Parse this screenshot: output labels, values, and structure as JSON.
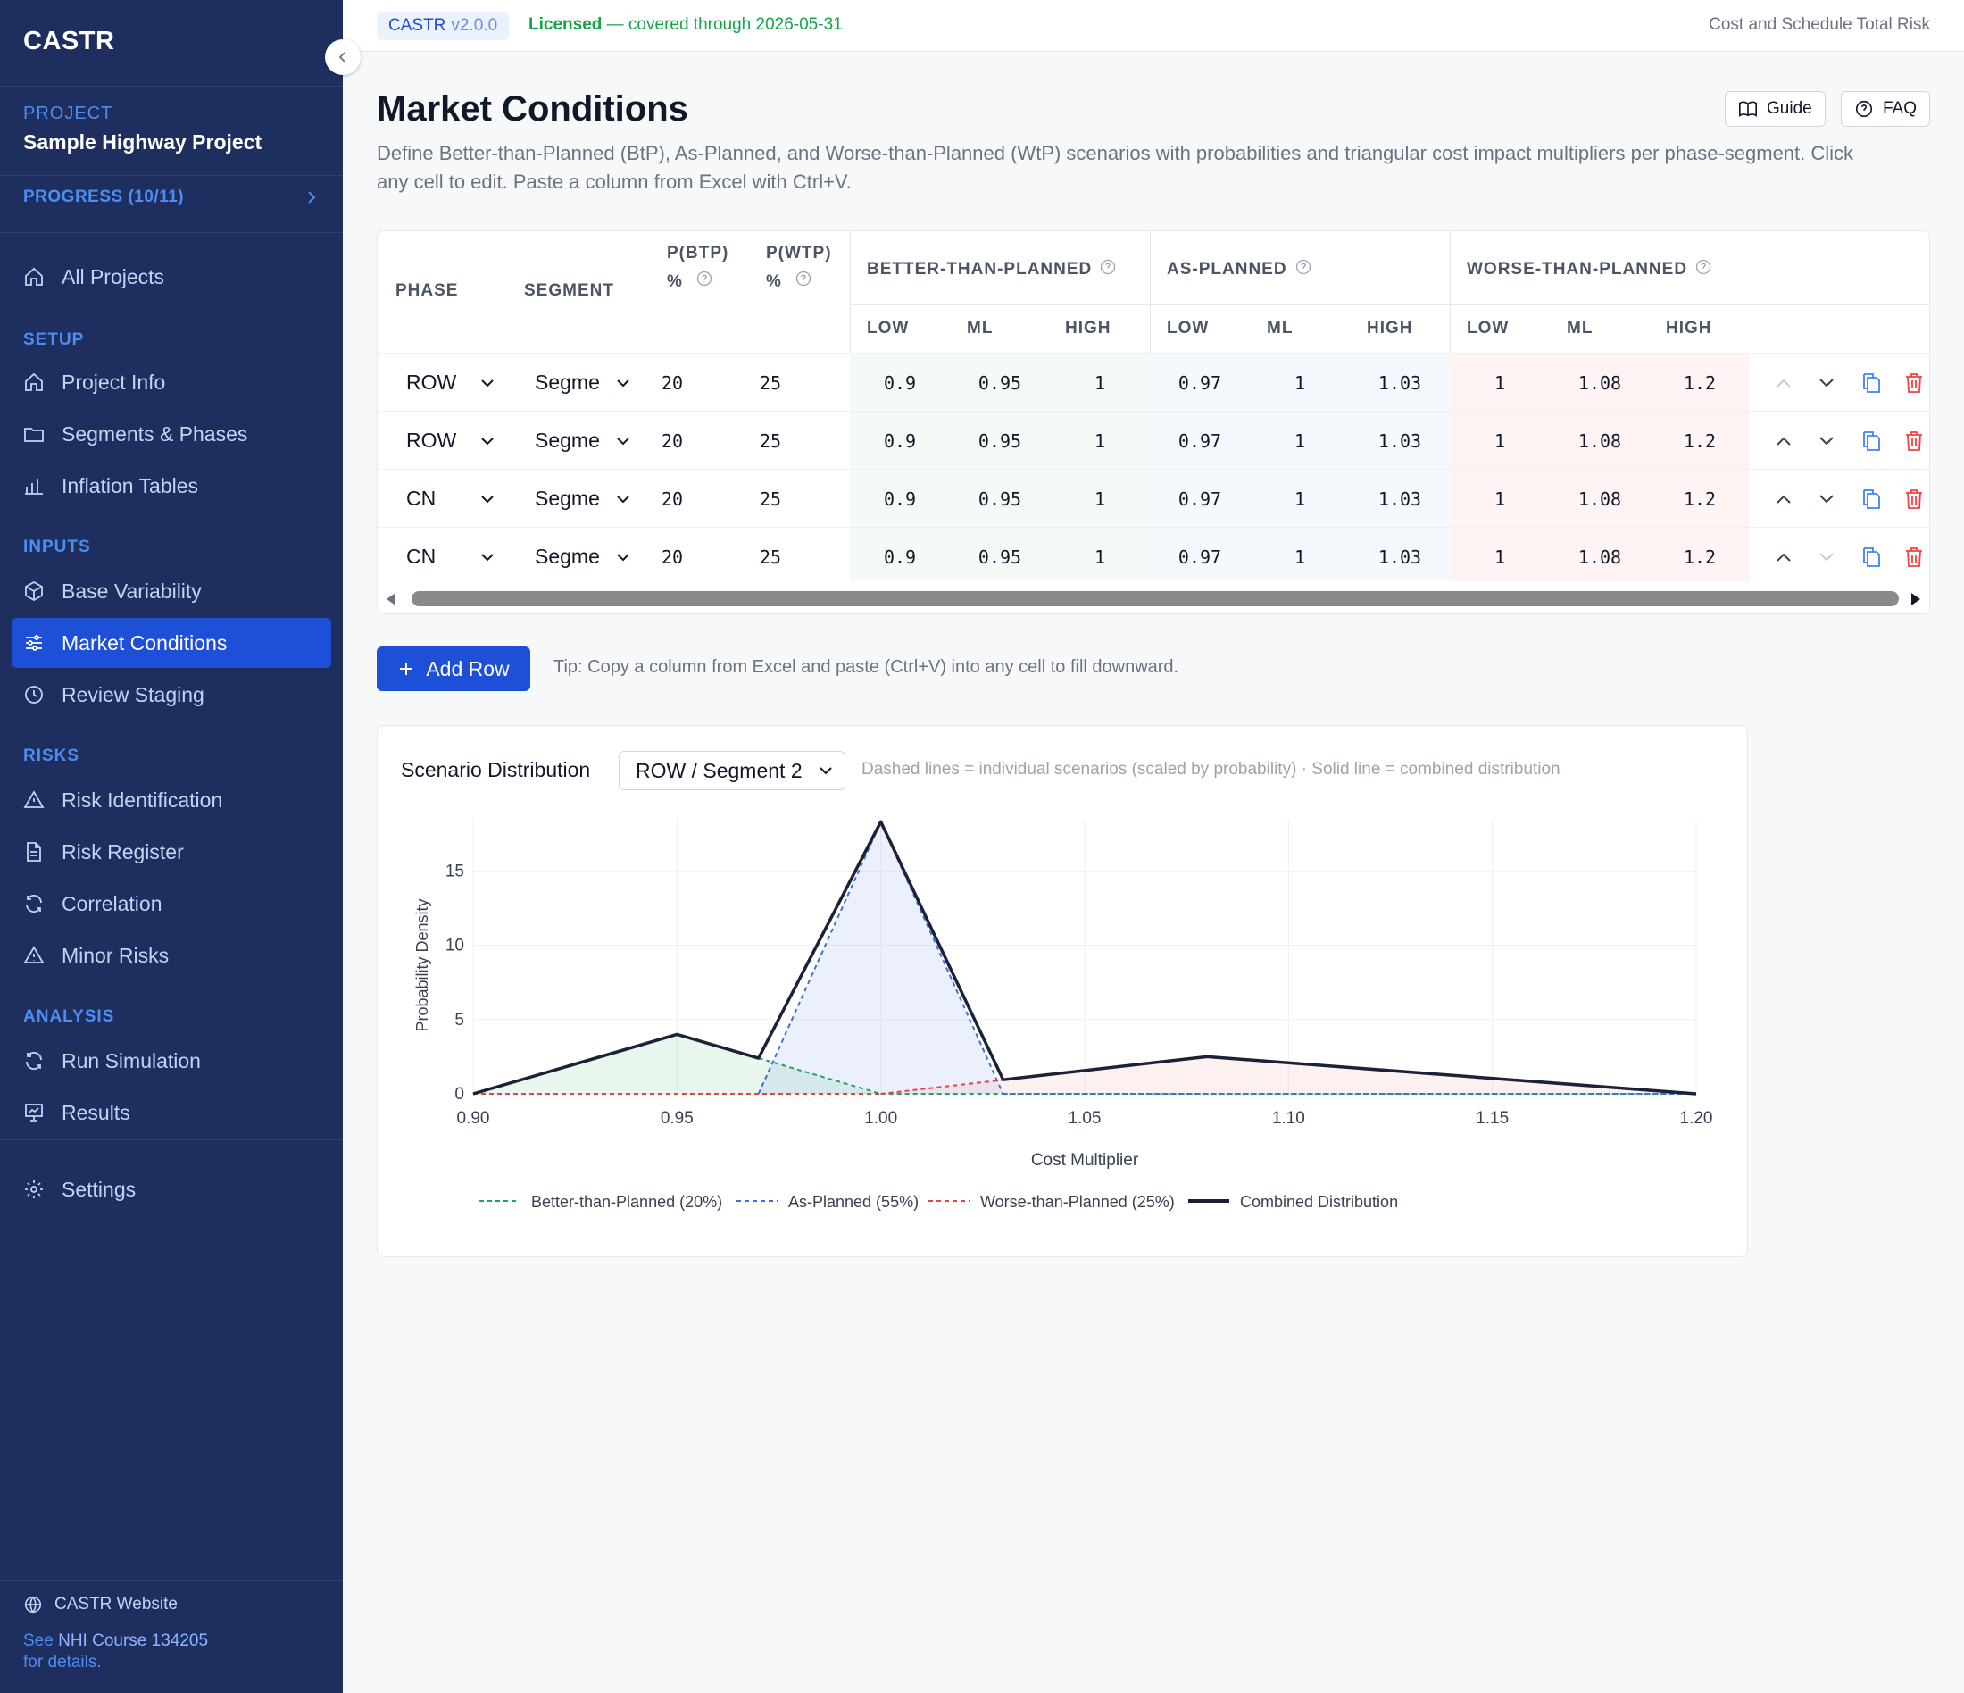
{
  "sidebar": {
    "logo": "CASTR",
    "project_label": "PROJECT",
    "project_name": "Sample Highway Project",
    "progress": "PROGRESS (10/11)",
    "all_projects": "All Projects",
    "sections": {
      "setup": "SETUP",
      "inputs": "INPUTS",
      "risks": "RISKS",
      "analysis": "ANALYSIS"
    },
    "items": {
      "project_info": "Project Info",
      "segments_phases": "Segments & Phases",
      "inflation_tables": "Inflation Tables",
      "base_variability": "Base Variability",
      "market_conditions": "Market Conditions",
      "review_staging": "Review Staging",
      "risk_identification": "Risk Identification",
      "risk_register": "Risk Register",
      "correlation": "Correlation",
      "minor_risks": "Minor Risks",
      "run_simulation": "Run Simulation",
      "results": "Results",
      "settings": "Settings"
    },
    "website": "CASTR Website",
    "nhi_prefix": "See ",
    "nhi_link": "NHI Course 134205",
    "nhi_suffix": "for details."
  },
  "topbar": {
    "app": "CASTR",
    "version": "v2.0.0",
    "license_strong": "Licensed",
    "license_rest": " — covered through 2026-05-31",
    "right": "Cost and Schedule Total Risk"
  },
  "page": {
    "title": "Market Conditions",
    "guide": "Guide",
    "faq": "FAQ",
    "description": "Define Better-than-Planned (BtP), As-Planned, and Worse-than-Planned (WtP) scenarios with probabilities and triangular cost impact multipliers per phase-segment. Click any cell to edit. Paste a column from Excel with Ctrl+V."
  },
  "table": {
    "headers": {
      "phase": "PHASE",
      "segment": "SEGMENT",
      "pbtp_1": "P(BTP)",
      "pbtp_2": "%",
      "pwtp_1": "P(WTP)",
      "pwtp_2": "%",
      "btp": "BETTER-THAN-PLANNED",
      "ap": "AS-PLANNED",
      "wtp": "WORSE-THAN-PLANNED",
      "low": "LOW",
      "ml": "ML",
      "high": "HIGH"
    },
    "rows": [
      {
        "phase": "ROW",
        "segment": "Segme",
        "pbtp": "20",
        "pwtp": "25",
        "btp_low": "0.9",
        "btp_ml": "0.95",
        "btp_high": "1",
        "ap_low": "0.97",
        "ap_ml": "1",
        "ap_high": "1.03",
        "wtp_low": "1",
        "wtp_ml": "1.08",
        "wtp_high": "1.2"
      },
      {
        "phase": "ROW",
        "segment": "Segme",
        "pbtp": "20",
        "pwtp": "25",
        "btp_low": "0.9",
        "btp_ml": "0.95",
        "btp_high": "1",
        "ap_low": "0.97",
        "ap_ml": "1",
        "ap_high": "1.03",
        "wtp_low": "1",
        "wtp_ml": "1.08",
        "wtp_high": "1.2"
      },
      {
        "phase": "CN",
        "segment": "Segme",
        "pbtp": "20",
        "pwtp": "25",
        "btp_low": "0.9",
        "btp_ml": "0.95",
        "btp_high": "1",
        "ap_low": "0.97",
        "ap_ml": "1",
        "ap_high": "1.03",
        "wtp_low": "1",
        "wtp_ml": "1.08",
        "wtp_high": "1.2"
      },
      {
        "phase": "CN",
        "segment": "Segme",
        "pbtp": "20",
        "pwtp": "25",
        "btp_low": "0.9",
        "btp_ml": "0.95",
        "btp_high": "1",
        "ap_low": "0.97",
        "ap_ml": "1",
        "ap_high": "1.03",
        "wtp_low": "1",
        "wtp_ml": "1.08",
        "wtp_high": "1.2"
      }
    ]
  },
  "add_row": "Add Row",
  "tip": "Tip: Copy a column from Excel and paste (Ctrl+V) into any cell to fill downward.",
  "chart_panel": {
    "title": "Scenario Distribution",
    "selected": "ROW / Segment 2",
    "note": "Dashed lines = individual scenarios (scaled by probability) · Solid line = combined distribution"
  },
  "colors": {
    "btp": "#22a55a",
    "ap": "#3b6fe0",
    "wtp": "#e04545",
    "combined": "#1b2238",
    "accent": "#1d4fd7"
  },
  "chart_data": {
    "type": "line",
    "xlabel": "Cost Multiplier",
    "ylabel": "Probability Density",
    "xlim": [
      0.9,
      1.2
    ],
    "ylim": [
      0,
      18.5
    ],
    "xticks": [
      "0.90",
      "0.95",
      "1.00",
      "1.05",
      "1.10",
      "1.15",
      "1.20"
    ],
    "yticks": [
      "0",
      "5",
      "10",
      "15"
    ],
    "legend_position": "bottom",
    "series": [
      {
        "name": "Better-than-Planned (20%)",
        "key": "btp",
        "style": "dashed",
        "x": [
          0.9,
          0.95,
          1.0
        ],
        "y": [
          0,
          4,
          0
        ]
      },
      {
        "name": "As-Planned (55%)",
        "key": "ap",
        "style": "dashed",
        "x": [
          0.97,
          1.0,
          1.03
        ],
        "y": [
          0,
          18.3,
          0
        ]
      },
      {
        "name": "Worse-than-Planned (25%)",
        "key": "wtp",
        "style": "dashed",
        "x": [
          1.0,
          1.08,
          1.2
        ],
        "y": [
          0,
          2.5,
          0
        ]
      },
      {
        "name": "Combined Distribution",
        "key": "combined",
        "style": "solid",
        "x": [
          0.9,
          0.95,
          0.97,
          1.0,
          1.03,
          1.08,
          1.2
        ],
        "y": [
          0,
          4,
          2.4,
          18.3,
          0.95,
          2.5,
          0
        ]
      }
    ]
  }
}
